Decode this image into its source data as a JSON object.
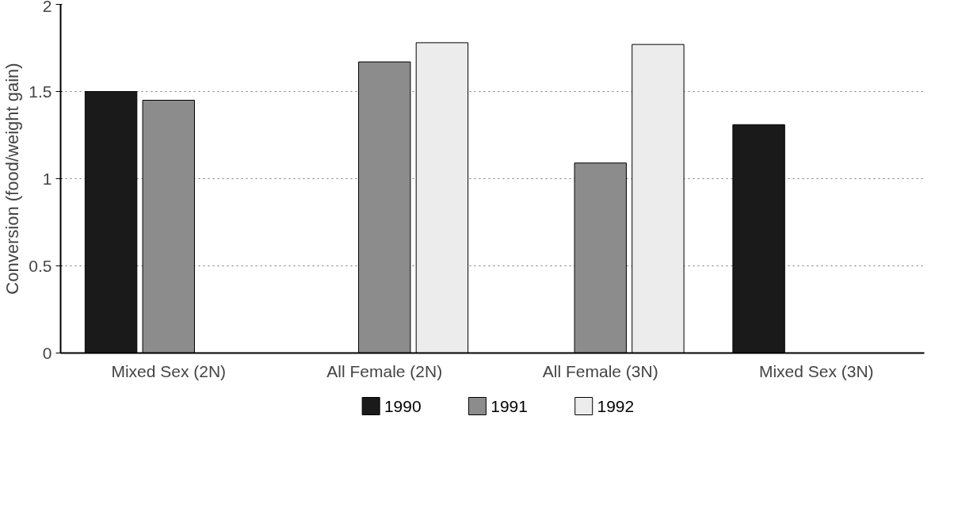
{
  "chart_data": {
    "type": "bar",
    "ylabel": "Conversion (food/weight gain)",
    "categories": [
      "Mixed Sex (2N)",
      "All Female (2N)",
      "All Female (3N)",
      "Mixed Sex (3N)"
    ],
    "series": [
      {
        "name": "1990",
        "color": "#1a1a1a",
        "values": [
          1.5,
          null,
          null,
          1.31
        ]
      },
      {
        "name": "1991",
        "color": "#8c8c8c",
        "values": [
          1.45,
          1.67,
          1.09,
          null
        ]
      },
      {
        "name": "1992",
        "color": "#ececec",
        "values": [
          null,
          1.78,
          1.77,
          null
        ]
      }
    ],
    "ylim": [
      0,
      2
    ],
    "yticks": [
      0,
      0.5,
      1,
      1.5,
      2
    ],
    "grid": "y",
    "legend": "bottom"
  }
}
